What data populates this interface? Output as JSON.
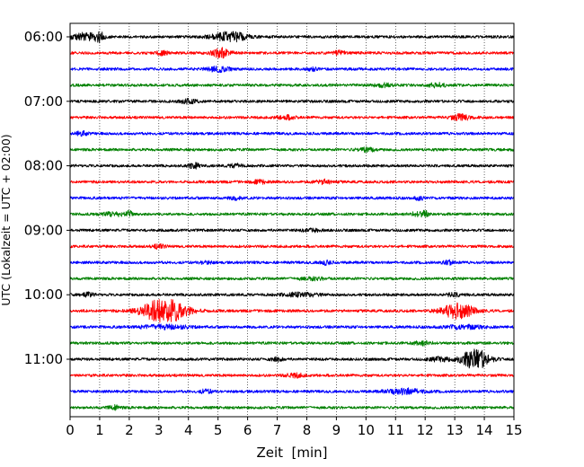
{
  "chart_data": {
    "type": "line",
    "xlabel": "Zeit  [min]",
    "ylabel": "UTC (Lokalzeit = UTC + 02:00)",
    "xlim": [
      0,
      15
    ],
    "x_ticks": [
      "0",
      "1",
      "2",
      "3",
      "4",
      "5",
      "6",
      "7",
      "8",
      "9",
      "10",
      "11",
      "12",
      "13",
      "14",
      "15"
    ],
    "y_ticks": [
      "06:00",
      "07:00",
      "08:00",
      "09:00",
      "10:00",
      "11:00"
    ],
    "grid": "vertical dotted lines at each minute",
    "trace_interval_minutes": 15,
    "trace_color_cycle": [
      "#000000",
      "#ff0000",
      "#0000ff",
      "#008000"
    ],
    "colors": {
      "black": "#000000",
      "red": "#ff0000",
      "blue": "#0000ff",
      "green": "#008000"
    },
    "traces": [
      {
        "start": "06:00",
        "color": "black",
        "events": [
          [
            0.5,
            0.5,
            4
          ],
          [
            1.0,
            0.15,
            4
          ],
          [
            5.4,
            0.6,
            5
          ]
        ]
      },
      {
        "start": "06:15",
        "color": "red",
        "events": [
          [
            3.1,
            0.2,
            2
          ],
          [
            5.1,
            0.3,
            5
          ],
          [
            9.1,
            0.2,
            2
          ]
        ]
      },
      {
        "start": "06:30",
        "color": "blue",
        "events": [
          [
            5.0,
            0.4,
            2.5
          ],
          [
            8.2,
            0.15,
            2
          ]
        ]
      },
      {
        "start": "06:45",
        "color": "green",
        "events": [
          [
            10.6,
            0.3,
            1.8
          ],
          [
            12.4,
            0.3,
            2
          ]
        ]
      },
      {
        "start": "07:00",
        "color": "black",
        "events": [
          [
            4.0,
            0.3,
            2
          ]
        ]
      },
      {
        "start": "07:15",
        "color": "red",
        "events": [
          [
            7.3,
            0.3,
            2
          ],
          [
            13.2,
            0.35,
            3
          ]
        ]
      },
      {
        "start": "07:30",
        "color": "blue",
        "events": [
          [
            0.4,
            0.2,
            2
          ]
        ]
      },
      {
        "start": "07:45",
        "color": "green",
        "events": [
          [
            10.0,
            0.3,
            2
          ]
        ]
      },
      {
        "start": "08:00",
        "color": "black",
        "events": [
          [
            4.2,
            0.2,
            2.5
          ],
          [
            5.6,
            0.2,
            2
          ]
        ]
      },
      {
        "start": "08:15",
        "color": "red",
        "events": [
          [
            6.4,
            0.2,
            2
          ],
          [
            8.6,
            0.3,
            2
          ]
        ]
      },
      {
        "start": "08:30",
        "color": "blue",
        "events": [
          [
            5.6,
            0.2,
            1.5
          ],
          [
            11.8,
            0.15,
            2
          ]
        ]
      },
      {
        "start": "08:45",
        "color": "green",
        "events": [
          [
            1.5,
            0.4,
            2
          ],
          [
            2.0,
            0.08,
            4
          ],
          [
            11.8,
            0.3,
            2
          ],
          [
            12.0,
            0.08,
            3
          ]
        ]
      },
      {
        "start": "09:00",
        "color": "black",
        "events": [
          [
            8.2,
            0.3,
            1.5
          ]
        ]
      },
      {
        "start": "09:15",
        "color": "red",
        "events": [
          [
            3.0,
            0.2,
            2
          ]
        ]
      },
      {
        "start": "09:30",
        "color": "blue",
        "events": [
          [
            4.6,
            0.2,
            1.5
          ],
          [
            8.6,
            0.2,
            2
          ],
          [
            12.8,
            0.2,
            2
          ]
        ]
      },
      {
        "start": "09:45",
        "color": "green",
        "events": [
          [
            8.2,
            0.5,
            1.2
          ]
        ]
      },
      {
        "start": "10:00",
        "color": "black",
        "events": [
          [
            0.6,
            0.2,
            1.8
          ],
          [
            7.8,
            0.6,
            2
          ],
          [
            13.0,
            0.3,
            1.5
          ]
        ]
      },
      {
        "start": "10:15",
        "color": "red",
        "events": [
          [
            3.2,
            0.75,
            13
          ],
          [
            13.1,
            0.55,
            8
          ]
        ]
      },
      {
        "start": "10:30",
        "color": "blue",
        "events": [
          [
            3.2,
            0.8,
            2
          ],
          [
            13.3,
            0.7,
            1.8
          ]
        ]
      },
      {
        "start": "10:45",
        "color": "green",
        "events": [
          [
            11.9,
            0.3,
            2
          ]
        ]
      },
      {
        "start": "11:00",
        "color": "black",
        "events": [
          [
            7.0,
            0.2,
            2
          ],
          [
            12.5,
            0.4,
            2
          ],
          [
            13.7,
            0.45,
            11
          ]
        ]
      },
      {
        "start": "11:15",
        "color": "red",
        "events": [
          [
            7.6,
            0.3,
            2
          ]
        ]
      },
      {
        "start": "11:30",
        "color": "blue",
        "events": [
          [
            4.6,
            0.2,
            2
          ],
          [
            11.3,
            0.6,
            3
          ]
        ]
      },
      {
        "start": "11:45",
        "color": "green",
        "events": [
          [
            1.5,
            0.2,
            2
          ]
        ]
      }
    ]
  }
}
